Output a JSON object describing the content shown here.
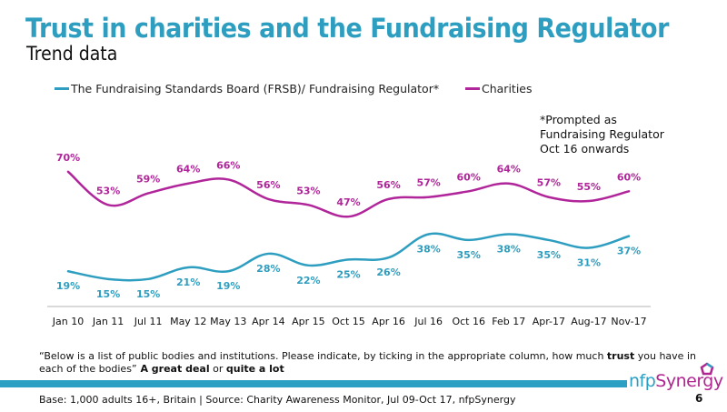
{
  "slide": {
    "title": "Trust in charities and the Fundraising Regulator",
    "subtitle": "Trend data",
    "note": "*Prompted as\nFundraising Regulator\nOct 16 onwards",
    "question_prefix": "“Below is a list of public bodies and institutions. Please indicate, by ticking in the appropriate column, how much ",
    "question_trust": "trust",
    "question_middle": " you have in each of the bodies”",
    "question_great": " A great deal",
    "question_or": " or ",
    "question_lot": "quite a lot",
    "source": "Base: 1,000 adults 16+, Britain | Source: Charity Awareness Monitor, Jul 09-Oct 17, nfpSynergy",
    "page_number": "6",
    "logo_prefix": "nfp",
    "logo_suffix": "Synergy",
    "colors": {
      "brand_blue": "#2ba0c2",
      "brand_magenta": "#b0258f"
    }
  },
  "chart_data": {
    "type": "line",
    "title": "Trust in charities and the Fundraising Regulator",
    "subtitle": "Trend data",
    "xlabel": "",
    "ylabel": "",
    "ylim": [
      0,
      80
    ],
    "grid": false,
    "legend_position": "top",
    "categories": [
      "Jan 10",
      "Jan 11",
      "Jul 11",
      "May 12",
      "May 13",
      "Apr 14",
      "Apr 15",
      "Oct 15",
      "Apr 16",
      "Jul 16",
      "Oct 16",
      "Feb 17",
      "Apr-17",
      "Aug-17",
      "Nov-17"
    ],
    "series": [
      {
        "name": "The Fundraising Standards Board (FRSB)/ Fundraising Regulator*",
        "color": "#2e9ec0",
        "values": [
          19,
          15,
          15,
          21,
          19,
          28,
          22,
          25,
          26,
          38,
          35,
          38,
          35,
          31,
          37
        ],
        "labels": [
          "19%",
          "15%",
          "15%",
          "21%",
          "19%",
          "28%",
          "22%",
          "25%",
          "26%",
          "38%",
          "35%",
          "38%",
          "35%",
          "31%",
          "37%"
        ],
        "label_position": "below"
      },
      {
        "name": "Charities",
        "color": "#b0259a",
        "values": [
          70,
          53,
          59,
          64,
          66,
          56,
          53,
          47,
          56,
          57,
          60,
          64,
          57,
          55,
          60
        ],
        "labels": [
          "70%",
          "53%",
          "59%",
          "64%",
          "66%",
          "56%",
          "53%",
          "47%",
          "56%",
          "57%",
          "60%",
          "64%",
          "57%",
          "55%",
          "60%"
        ],
        "label_position": "above"
      }
    ]
  }
}
